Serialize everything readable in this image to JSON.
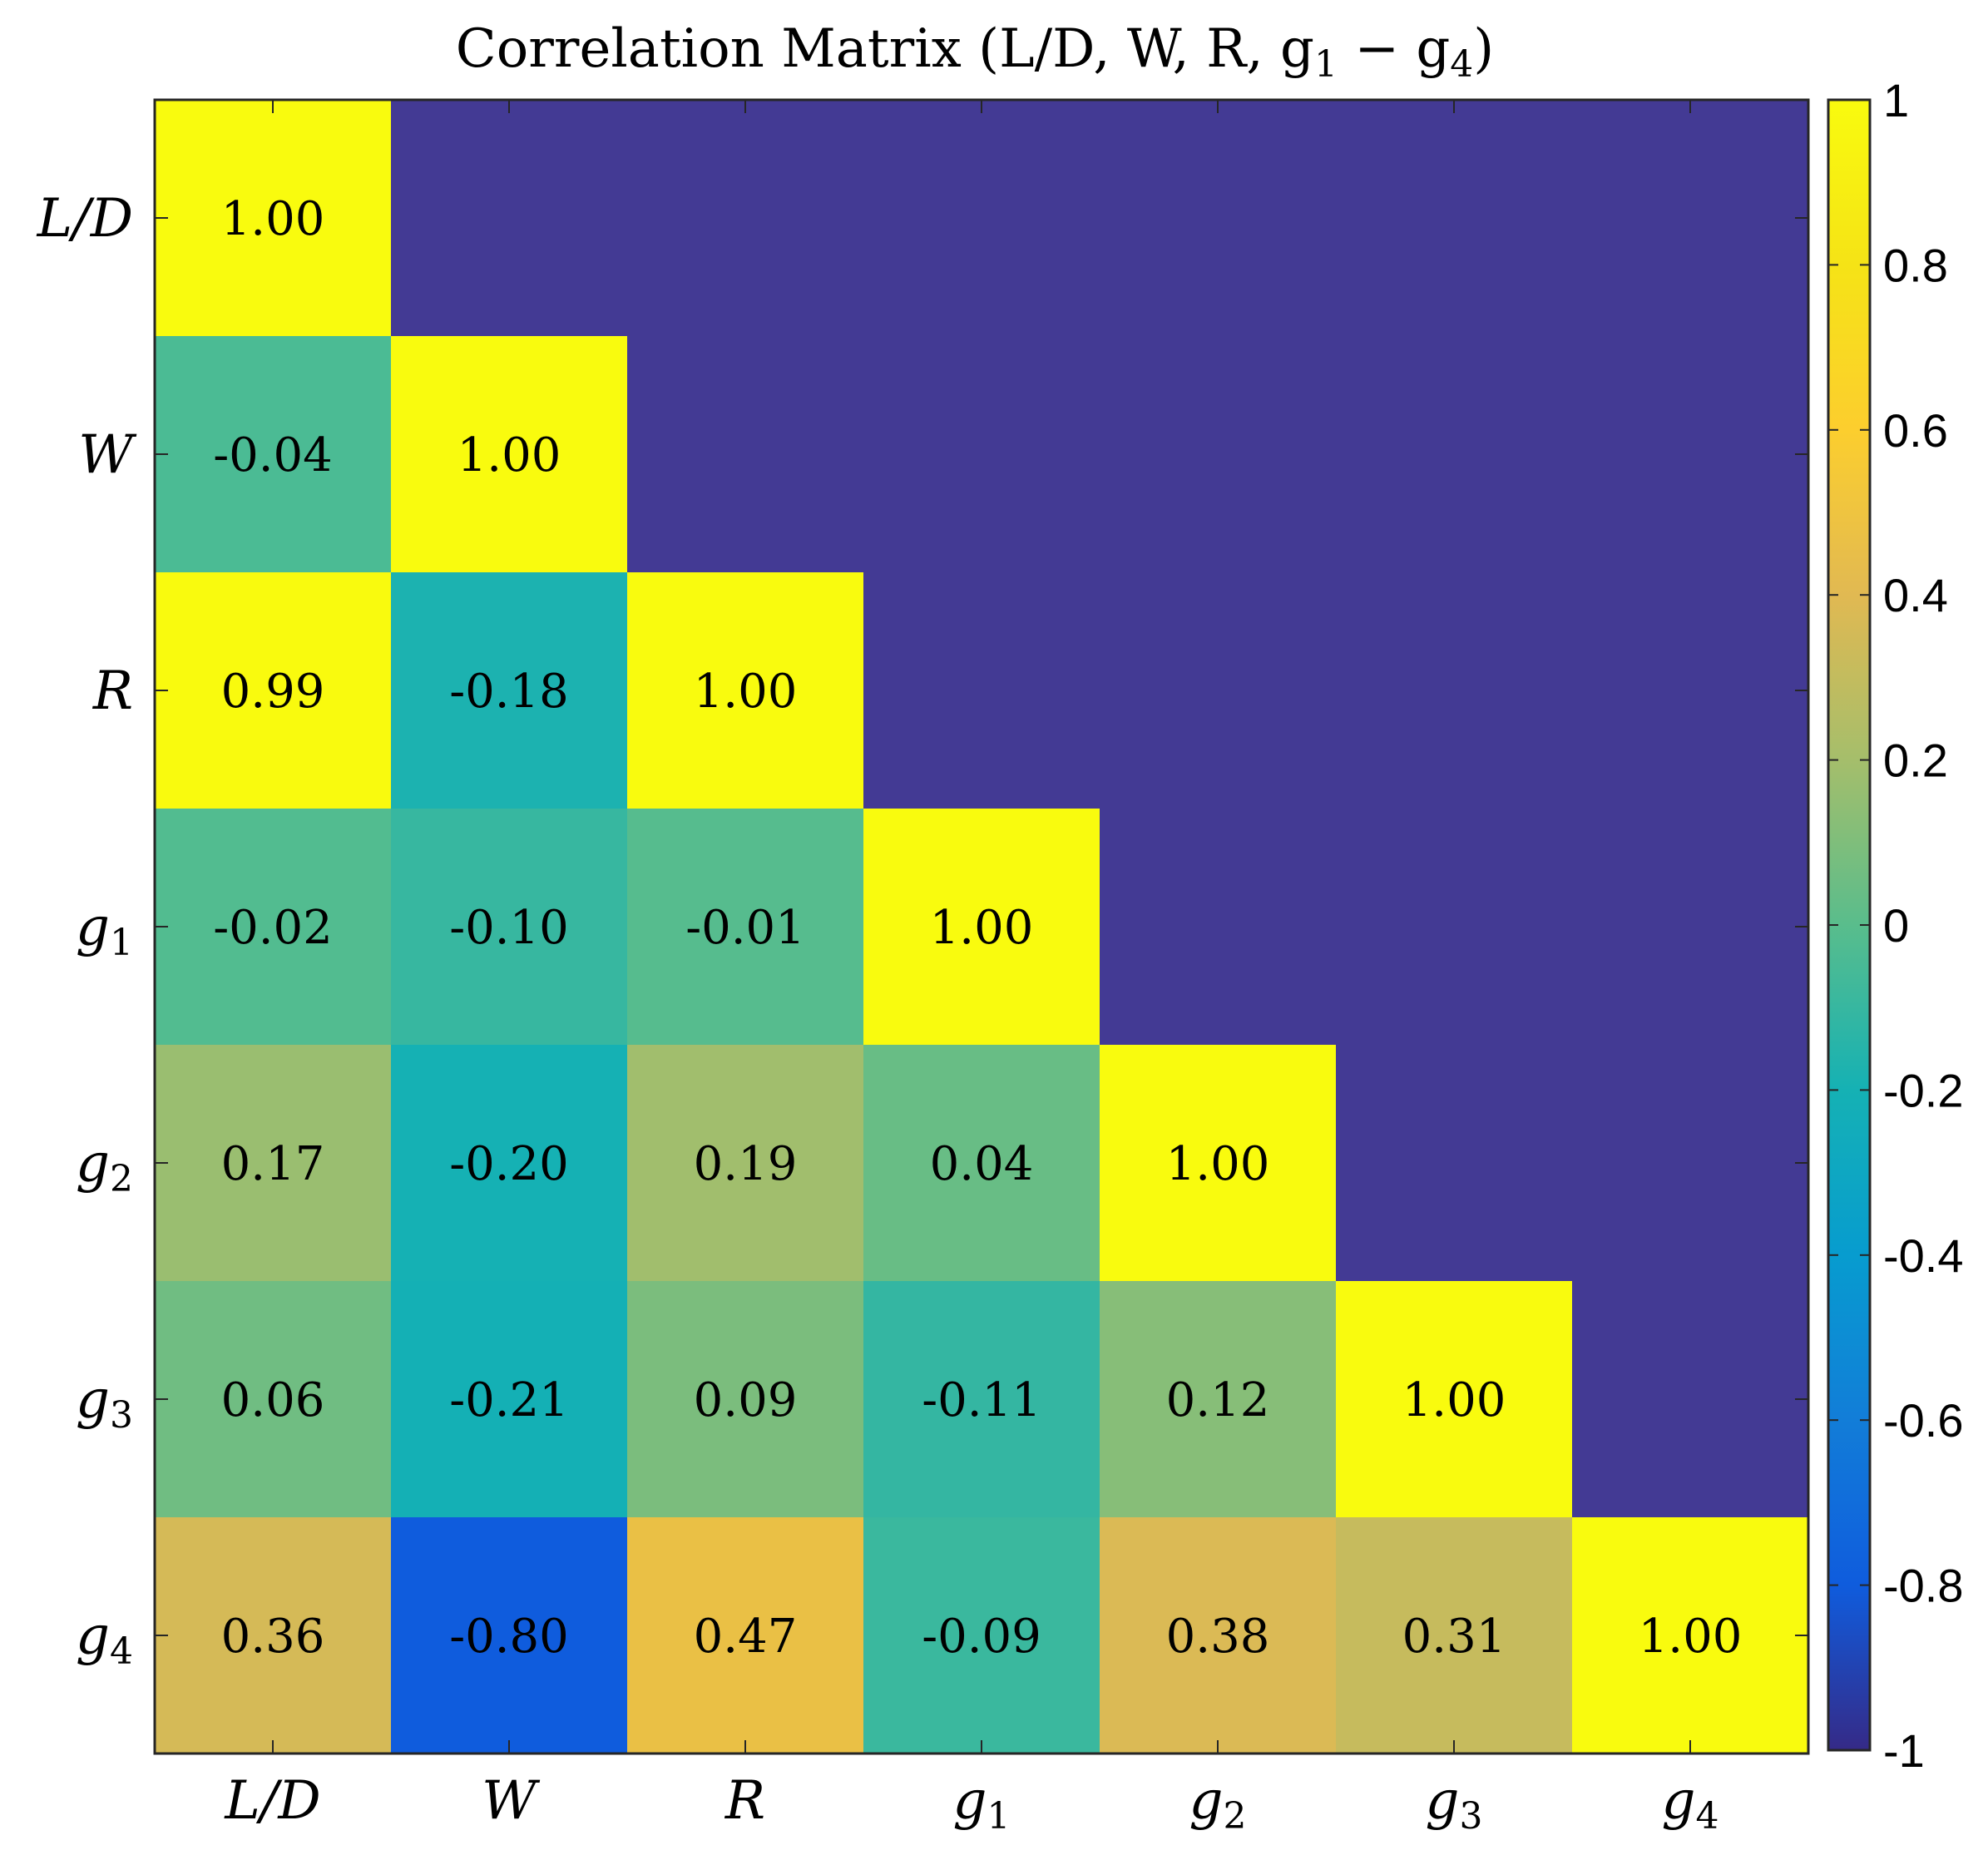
{
  "chart_data": {
    "type": "heatmap",
    "title": "Correlation Matrix (L/D, W, R, g1 − g4)",
    "title_parts": [
      "Correlation Matrix (L/D,  W,  R,  g",
      "1",
      " − g",
      "4",
      ")"
    ],
    "x_labels": [
      {
        "base": "L/D",
        "sub": ""
      },
      {
        "base": "W",
        "sub": ""
      },
      {
        "base": "R",
        "sub": ""
      },
      {
        "base": "g",
        "sub": "1"
      },
      {
        "base": "g",
        "sub": "2"
      },
      {
        "base": "g",
        "sub": "3"
      },
      {
        "base": "g",
        "sub": "4"
      }
    ],
    "y_labels": [
      {
        "base": "L/D",
        "sub": ""
      },
      {
        "base": "W",
        "sub": ""
      },
      {
        "base": "R",
        "sub": ""
      },
      {
        "base": "g",
        "sub": "1"
      },
      {
        "base": "g",
        "sub": "2"
      },
      {
        "base": "g",
        "sub": "3"
      },
      {
        "base": "g",
        "sub": "4"
      }
    ],
    "matrix": [
      [
        1.0,
        null,
        null,
        null,
        null,
        null,
        null
      ],
      [
        -0.04,
        1.0,
        null,
        null,
        null,
        null,
        null
      ],
      [
        0.99,
        -0.18,
        1.0,
        null,
        null,
        null,
        null
      ],
      [
        -0.02,
        -0.1,
        -0.01,
        1.0,
        null,
        null,
        null
      ],
      [
        0.17,
        -0.2,
        0.19,
        0.04,
        1.0,
        null,
        null
      ],
      [
        0.06,
        -0.21,
        0.09,
        -0.11,
        0.12,
        1.0,
        null
      ],
      [
        0.36,
        -0.8,
        0.47,
        -0.09,
        0.38,
        0.31,
        1.0
      ]
    ],
    "cell_labels": [
      [
        "1.00",
        "",
        "",
        "",
        "",
        "",
        ""
      ],
      [
        "-0.04",
        "1.00",
        "",
        "",
        "",
        "",
        ""
      ],
      [
        "0.99",
        "-0.18",
        "1.00",
        "",
        "",
        "",
        ""
      ],
      [
        "-0.02",
        "-0.10",
        "-0.01",
        "1.00",
        "",
        "",
        ""
      ],
      [
        "0.17",
        "-0.20",
        "0.19",
        "0.04",
        "1.00",
        "",
        ""
      ],
      [
        "0.06",
        "-0.21",
        "0.09",
        "-0.11",
        "0.12",
        "1.00",
        ""
      ],
      [
        "0.36",
        "-0.80",
        "0.47",
        "-0.09",
        "0.38",
        "0.31",
        "1.00"
      ]
    ],
    "masked_color": "#433a94",
    "colorbar": {
      "range": [
        -1,
        1
      ],
      "ticks": [
        1,
        0.8,
        0.6,
        0.4,
        0.2,
        0,
        -0.2,
        -0.4,
        -0.6,
        -0.8,
        -1
      ],
      "tick_labels": [
        "1",
        "0.8",
        "0.6",
        "0.4",
        "0.2",
        "0",
        "-0.2",
        "-0.4",
        "-0.6",
        "-0.8",
        "-1"
      ],
      "colormap": "parula"
    }
  }
}
